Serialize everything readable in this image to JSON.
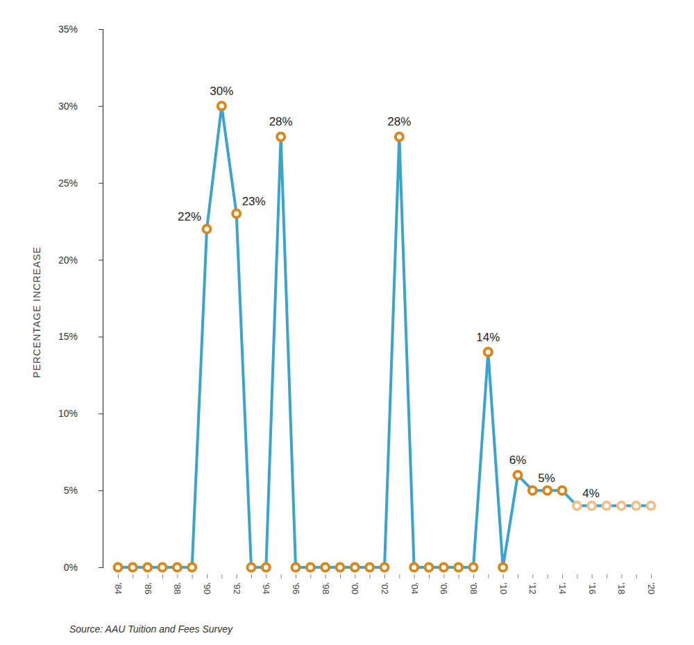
{
  "chart_data": {
    "type": "line",
    "y_label": "PERCENTAGE INCREASE",
    "source": "Source: AAU Tuition and Fees Survey",
    "categories": [
      "'84",
      null,
      "'86",
      null,
      "'88",
      null,
      "'90",
      null,
      "'92",
      null,
      "'94",
      null,
      "'96",
      null,
      "'98",
      null,
      "'00",
      null,
      "'02",
      null,
      "'04",
      null,
      "'06",
      null,
      "'08",
      null,
      "'10",
      null,
      "'12",
      null,
      "'14",
      null,
      "'16",
      null,
      "'18",
      null,
      "'20"
    ],
    "values": [
      0,
      0,
      0,
      0,
      0,
      0,
      22,
      30,
      23,
      0,
      0,
      28,
      0,
      0,
      0,
      0,
      0,
      0,
      0,
      28,
      0,
      0,
      0,
      0,
      0,
      14,
      0,
      6,
      5,
      5,
      5,
      4,
      4,
      4,
      4,
      4,
      4
    ],
    "value_labels": [
      null,
      null,
      null,
      null,
      null,
      null,
      "22%",
      "30%",
      "23%",
      null,
      null,
      "28%",
      null,
      null,
      null,
      null,
      null,
      null,
      null,
      "28%",
      null,
      null,
      null,
      null,
      null,
      "14%",
      null,
      "6%",
      "5%",
      null,
      null,
      "4%",
      null,
      null,
      null,
      null,
      null
    ],
    "data_labels": true,
    "color": "#3ba3cc",
    "colors": [
      "#d9861c",
      "#d9861c",
      "#d9861c",
      "#d9861c",
      "#d9861c",
      "#d9861c",
      "#d9861c",
      "#d9861c",
      "#d9861c",
      "#d9861c",
      "#d9861c",
      "#d9861c",
      "#d9861c",
      "#d9861c",
      "#d9861c",
      "#d9861c",
      "#d9861c",
      "#d9861c",
      "#d9861c",
      "#d9861c",
      "#d9861c",
      "#d9861c",
      "#d9861c",
      "#d9861c",
      "#d9861c",
      "#d9861c",
      "#d9861c",
      "#d9861c",
      "#d9861c",
      "#d9861c",
      "#d9861c",
      "#f0c08c",
      "#f0c08c",
      "#f0c08c",
      "#f0c08c",
      "#f0c08c",
      "#f0c08c"
    ],
    "marker": "circle",
    "ylim": [
      0,
      35
    ],
    "yticks": [
      {
        "value": 0,
        "label": "0%"
      },
      {
        "value": 5,
        "label": "5%"
      },
      {
        "value": 10,
        "label": "10%"
      },
      {
        "value": 15,
        "label": "15%"
      },
      {
        "value": 20,
        "label": "20%"
      },
      {
        "value": 25,
        "label": "25%"
      },
      {
        "value": 30,
        "label": "30%"
      },
      {
        "value": 35,
        "label": "35%"
      }
    ],
    "grid": false
  }
}
